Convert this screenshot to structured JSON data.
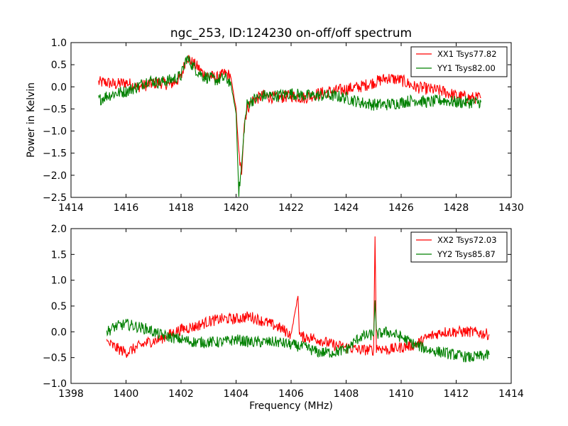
{
  "chart_data": [
    {
      "type": "line",
      "title": "ngc_253, ID:124230 on-off/off spectrum",
      "xlabel": "",
      "ylabel": "Power in Kelvin",
      "xlim": [
        1414,
        1430
      ],
      "ylim": [
        -2.5,
        1.0
      ],
      "xticks": [
        "1414",
        "1416",
        "1418",
        "1420",
        "1422",
        "1424",
        "1426",
        "1428",
        "1430"
      ],
      "yticks": [
        "1.0",
        "0.5",
        "0.0",
        "−0.5",
        "−1.0",
        "−1.5",
        "−2.0",
        "−2.5"
      ],
      "legend_position": "top-right",
      "series": [
        {
          "name": "XX1 Tsys77.82",
          "color": "#ff0000",
          "x": [
            1415.0,
            1415.3,
            1415.6,
            1416.0,
            1416.4,
            1416.8,
            1417.2,
            1417.6,
            1418.0,
            1418.2,
            1418.4,
            1418.6,
            1418.8,
            1419.0,
            1419.3,
            1419.6,
            1419.8,
            1420.0,
            1420.1,
            1420.2,
            1420.3,
            1420.4,
            1420.6,
            1421.0,
            1421.5,
            1422.0,
            1422.5,
            1423.0,
            1423.5,
            1424.0,
            1424.5,
            1425.0,
            1425.5,
            1426.0,
            1426.5,
            1427.0,
            1427.5,
            1428.0,
            1428.5,
            1428.9
          ],
          "y": [
            0.1,
            0.1,
            0.05,
            0.1,
            0.0,
            0.05,
            0.1,
            0.05,
            0.2,
            0.7,
            0.55,
            0.45,
            0.3,
            0.25,
            0.2,
            0.3,
            0.25,
            -0.5,
            -1.5,
            -2.0,
            -0.8,
            -0.5,
            -0.3,
            -0.2,
            -0.25,
            -0.2,
            -0.25,
            -0.15,
            -0.1,
            -0.05,
            0.0,
            0.1,
            0.2,
            0.15,
            0.0,
            -0.05,
            -0.1,
            -0.2,
            -0.25,
            -0.25
          ]
        },
        {
          "name": "YY1 Tsys82.00",
          "color": "#008000",
          "x": [
            1415.0,
            1415.3,
            1415.6,
            1416.0,
            1416.4,
            1416.8,
            1417.2,
            1417.6,
            1418.0,
            1418.2,
            1418.4,
            1418.6,
            1418.8,
            1419.0,
            1419.3,
            1419.6,
            1419.8,
            1420.0,
            1420.1,
            1420.2,
            1420.3,
            1420.4,
            1420.6,
            1421.0,
            1421.5,
            1422.0,
            1422.5,
            1423.0,
            1423.5,
            1424.0,
            1424.5,
            1425.0,
            1425.5,
            1426.0,
            1426.5,
            1427.0,
            1427.5,
            1428.0,
            1428.5,
            1428.9
          ],
          "y": [
            -0.3,
            -0.2,
            -0.15,
            -0.1,
            0.0,
            0.15,
            0.1,
            0.15,
            0.25,
            0.65,
            0.5,
            0.35,
            0.25,
            0.2,
            0.15,
            0.2,
            0.1,
            -0.6,
            -2.4,
            -1.8,
            -0.9,
            -0.4,
            -0.3,
            -0.2,
            -0.2,
            -0.15,
            -0.2,
            -0.2,
            -0.2,
            -0.25,
            -0.35,
            -0.4,
            -0.4,
            -0.35,
            -0.3,
            -0.35,
            -0.3,
            -0.35,
            -0.35,
            -0.35
          ]
        }
      ]
    },
    {
      "type": "line",
      "title": "",
      "xlabel": "Frequency (MHz)",
      "ylabel": "",
      "xlim": [
        1398,
        1414
      ],
      "ylim": [
        -1.0,
        2.0
      ],
      "xticks": [
        "1398",
        "1400",
        "1402",
        "1404",
        "1406",
        "1408",
        "1410",
        "1412",
        "1414"
      ],
      "yticks": [
        "2.0",
        "1.5",
        "1.0",
        "0.5",
        "0.0",
        "−0.5",
        "−1.0"
      ],
      "legend_position": "top-right",
      "series": [
        {
          "name": "XX2 Tsys72.03",
          "color": "#ff0000",
          "x": [
            1399.3,
            1399.6,
            1400.0,
            1400.4,
            1400.8,
            1401.2,
            1401.6,
            1402.0,
            1402.5,
            1403.0,
            1403.5,
            1404.0,
            1404.5,
            1405.0,
            1405.5,
            1406.0,
            1406.25,
            1406.3,
            1406.35,
            1406.6,
            1407.0,
            1407.5,
            1408.0,
            1408.5,
            1409.0,
            1409.05,
            1409.1,
            1409.5,
            1410.0,
            1410.5,
            1411.0,
            1411.5,
            1412.0,
            1412.5,
            1413.2
          ],
          "y": [
            -0.2,
            -0.3,
            -0.4,
            -0.3,
            -0.2,
            -0.15,
            -0.05,
            0.05,
            0.1,
            0.2,
            0.25,
            0.25,
            0.3,
            0.2,
            0.1,
            -0.05,
            0.7,
            0.0,
            -0.1,
            -0.1,
            -0.15,
            -0.25,
            -0.3,
            -0.35,
            -0.35,
            1.85,
            -0.3,
            -0.35,
            -0.3,
            -0.25,
            -0.1,
            0.0,
            0.0,
            0.0,
            -0.05
          ]
        },
        {
          "name": "YY2 Tsys85.87",
          "color": "#008000",
          "x": [
            1399.3,
            1399.6,
            1400.0,
            1400.4,
            1400.8,
            1401.2,
            1401.6,
            1402.0,
            1402.5,
            1403.0,
            1403.5,
            1404.0,
            1404.5,
            1405.0,
            1405.5,
            1406.0,
            1406.5,
            1407.0,
            1407.5,
            1408.0,
            1408.5,
            1409.0,
            1409.05,
            1409.1,
            1409.5,
            1410.0,
            1410.5,
            1411.0,
            1411.5,
            1412.0,
            1412.5,
            1413.2
          ],
          "y": [
            0.0,
            0.1,
            0.15,
            0.1,
            0.05,
            -0.05,
            -0.1,
            -0.15,
            -0.2,
            -0.2,
            -0.2,
            -0.15,
            -0.2,
            -0.2,
            -0.2,
            -0.25,
            -0.3,
            -0.4,
            -0.4,
            -0.35,
            -0.1,
            -0.05,
            0.6,
            -0.05,
            0.0,
            -0.1,
            -0.25,
            -0.35,
            -0.4,
            -0.45,
            -0.5,
            -0.45
          ]
        }
      ]
    }
  ]
}
